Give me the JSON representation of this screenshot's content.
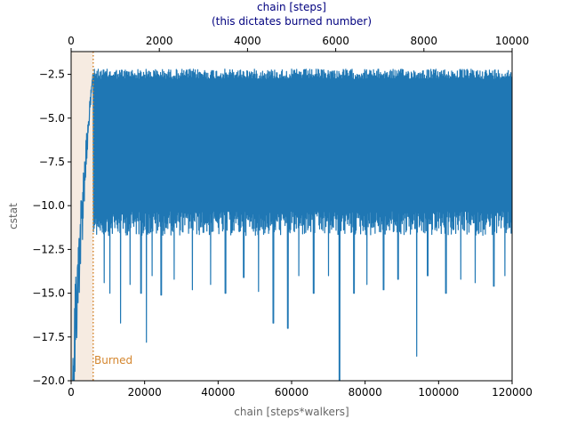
{
  "chart_data": {
    "type": "line",
    "ylabel": "cstat",
    "xlabel_bottom": "chain [steps*walkers]",
    "xlabel_top_line1": "chain [steps]",
    "xlabel_top_line2": "(this dictates burned number)",
    "xlim_bottom": [
      0,
      120000
    ],
    "xlim_top": [
      0,
      10000
    ],
    "ylim": [
      -20.0,
      -1.2
    ],
    "x_ticks_bottom": [
      0,
      20000,
      40000,
      60000,
      80000,
      100000,
      120000
    ],
    "x_tick_labels_bottom": [
      "0",
      "20000",
      "40000",
      "60000",
      "80000",
      "100000",
      "120000"
    ],
    "x_ticks_top": [
      0,
      2000,
      4000,
      6000,
      8000,
      10000
    ],
    "x_tick_labels_top": [
      "0",
      "2000",
      "4000",
      "6000",
      "8000",
      "10000"
    ],
    "y_ticks": [
      -20.0,
      -17.5,
      -15.0,
      -12.5,
      -10.0,
      -7.5,
      -5.0,
      -2.5
    ],
    "y_tick_labels": [
      "−20.0",
      "−17.5",
      "−15.0",
      "−12.5",
      "−10.0",
      "−7.5",
      "−5.0",
      "−2.5"
    ],
    "burn_in": {
      "x": 6000,
      "label": "Burned"
    },
    "series": [
      {
        "color": "#1f77b4",
        "description": "MCMC trace: rises from about -20 at x=0 to about -2.3 by x=6000, then fluctuates between about -2.2 and -11.5 with occasional dips",
        "band_top": -2.2,
        "band_bottom": -11.5,
        "dips": [
          [
            9000,
            -14.4
          ],
          [
            10500,
            -15.0
          ],
          [
            13500,
            -16.7
          ],
          [
            16000,
            -14.5
          ],
          [
            19000,
            -15.0
          ],
          [
            20500,
            -17.8
          ],
          [
            22000,
            -14.0
          ],
          [
            24500,
            -15.1
          ],
          [
            28000,
            -14.2
          ],
          [
            33000,
            -14.8
          ],
          [
            38000,
            -14.5
          ],
          [
            42000,
            -15.0
          ],
          [
            47000,
            -14.1
          ],
          [
            51000,
            -14.9
          ],
          [
            55000,
            -16.7
          ],
          [
            59000,
            -17.0
          ],
          [
            62000,
            -14.0
          ],
          [
            66000,
            -15.0
          ],
          [
            70000,
            -14.0
          ],
          [
            73000,
            -20.0
          ],
          [
            77000,
            -15.0
          ],
          [
            80500,
            -14.5
          ],
          [
            85000,
            -14.8
          ],
          [
            89000,
            -14.2
          ],
          [
            94000,
            -18.6
          ],
          [
            97000,
            -14.0
          ],
          [
            102000,
            -15.0
          ],
          [
            106000,
            -14.2
          ],
          [
            110000,
            -14.4
          ],
          [
            115000,
            -14.6
          ],
          [
            118000,
            -14.0
          ]
        ]
      }
    ],
    "colors": {
      "trace": "#1f77b4",
      "burn_line": "#d4862e",
      "burn_shade": "#f6ebe1",
      "top_axis_text": "#00007f",
      "bottom_axis_label": "#666666",
      "y_axis_label": "#666666"
    },
    "grid": false
  }
}
